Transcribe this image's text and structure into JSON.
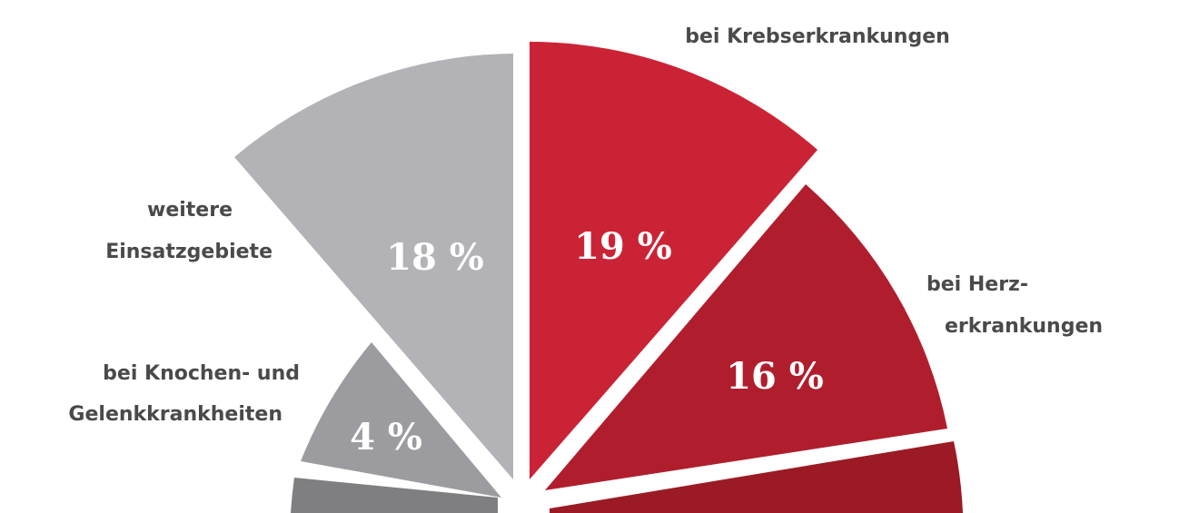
{
  "chart_data": {
    "type": "pie",
    "title": "",
    "slices": [
      {
        "label_lines": [
          "bei Krebserkrankungen"
        ],
        "value": 19,
        "value_label": "19 %",
        "color": "#cb2336"
      },
      {
        "label_lines": [
          "bei Herz-",
          "erkrankungen"
        ],
        "value": 16,
        "value_label": "16 %",
        "color": "#b01e2d"
      },
      {
        "label_lines": [],
        "value": null,
        "value_label": "",
        "color": "#9b1a25"
      },
      {
        "label_lines": [],
        "value": null,
        "value_label": "",
        "color": "#7f7f82"
      },
      {
        "label_lines": [
          "bei Knochen- und",
          "Gelenkkrankheiten"
        ],
        "value": 4,
        "value_label": "4 %",
        "color": "#9c9ca0"
      },
      {
        "label_lines": [
          "weitere",
          "Einsatzgebiete"
        ],
        "value": 18,
        "value_label": "18 %",
        "color": "#b3b3b7"
      }
    ]
  }
}
